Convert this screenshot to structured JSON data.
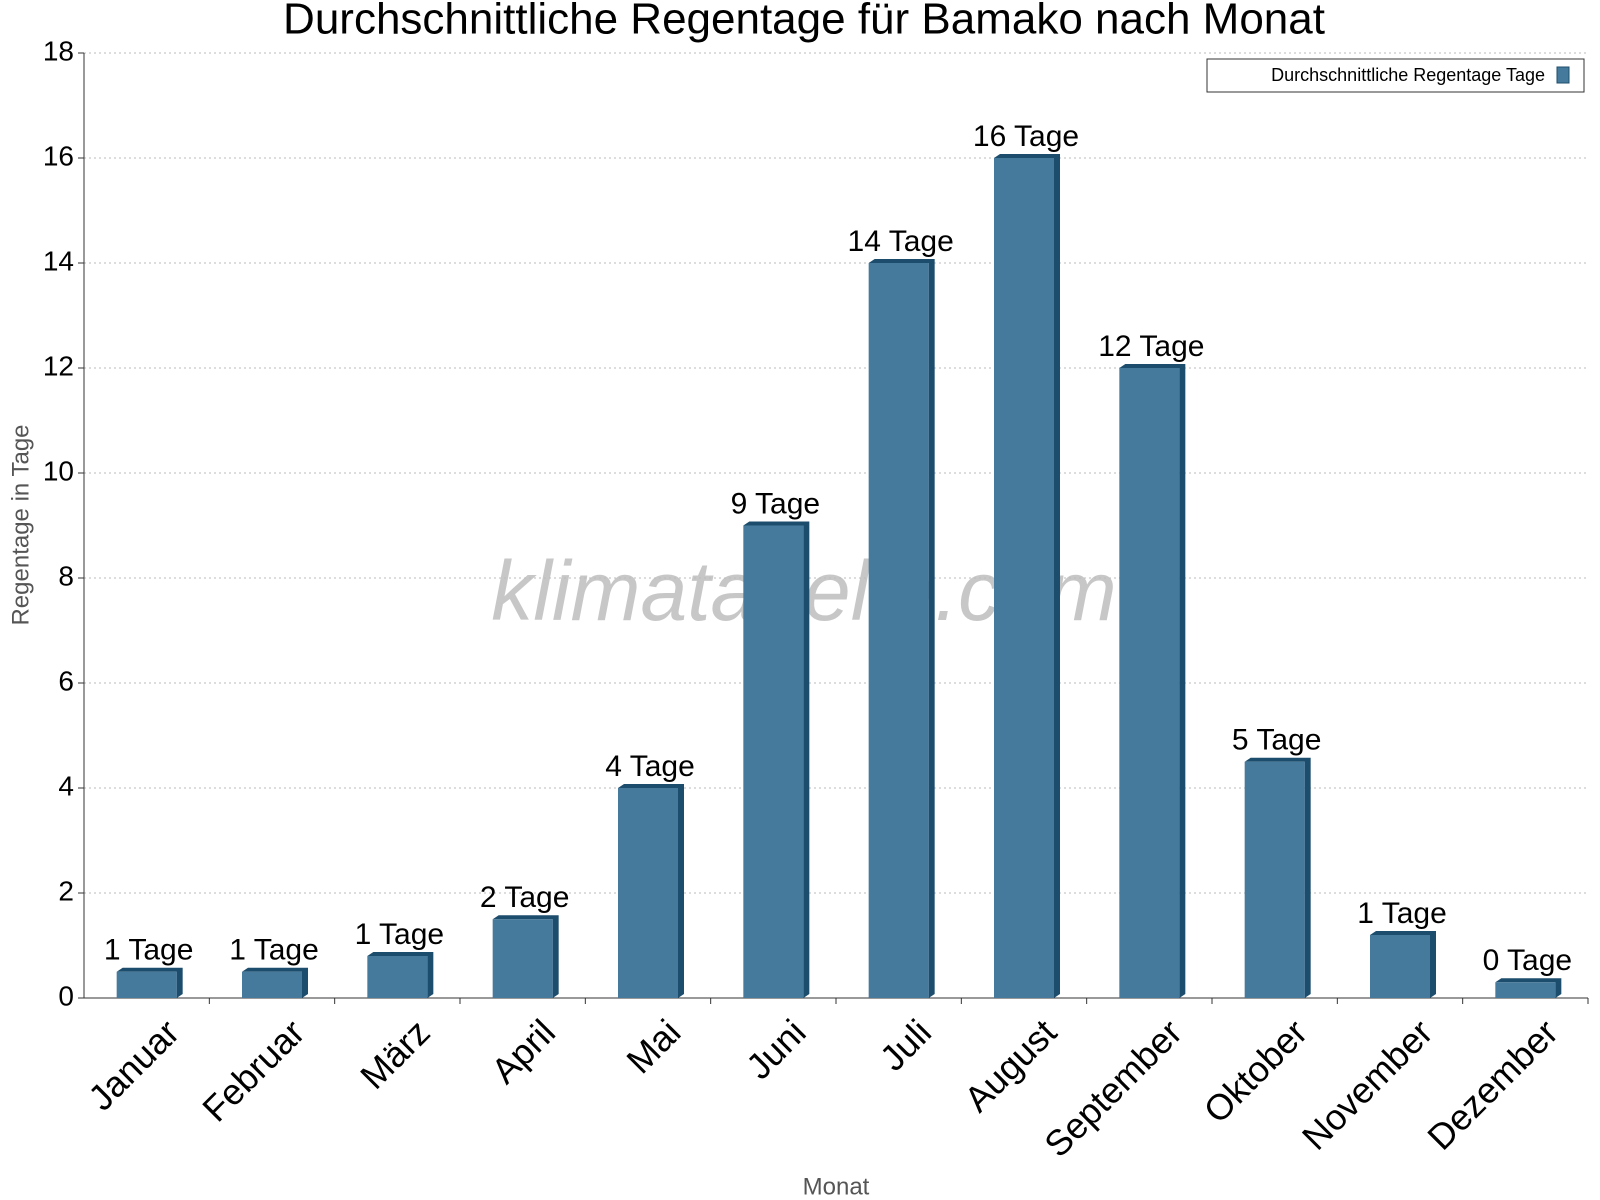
{
  "chart_data": {
    "type": "bar",
    "title": "Durchschnittliche Regentage für Bamako nach Monat",
    "watermark": "klimatabelle.com",
    "x_label": "Monat",
    "y_label": "Regentage in Tage",
    "legend": "top-right",
    "categories": [
      "Januar",
      "Februar",
      "März",
      "April",
      "Mai",
      "Juni",
      "Juli",
      "August",
      "September",
      "Oktober",
      "November",
      "Dezember"
    ],
    "series": [
      {
        "name": "Durchschnittliche Regentage Tage",
        "color": "#467a9c",
        "values": [
          0.5,
          0.5,
          0.8,
          1.5,
          4,
          9,
          14,
          16,
          12,
          4.5,
          1.2,
          0.3
        ],
        "value_labels": [
          "1 Tage",
          "1 Tage",
          "1 Tage",
          "2 Tage",
          "4 Tage",
          "9 Tage",
          "14 Tage",
          "16 Tage",
          "12 Tage",
          "5 Tage",
          "1 Tage",
          "0 Tage"
        ]
      }
    ],
    "ylim": [
      0,
      18
    ],
    "yticks": [
      0,
      2,
      4,
      6,
      8,
      10,
      12,
      14,
      16,
      18
    ],
    "grid": true
  }
}
